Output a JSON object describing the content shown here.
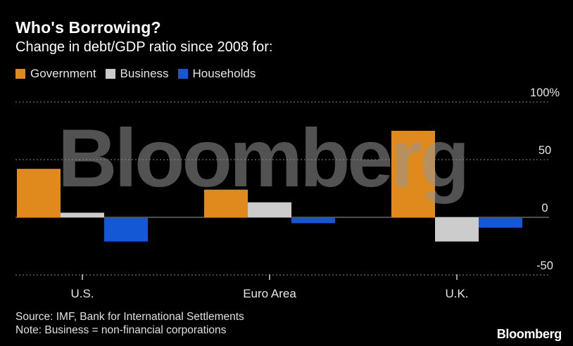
{
  "title": "Who's Borrowing?",
  "subtitle": "Change in debt/GDP ratio since 2008 for:",
  "legend": [
    {
      "label": "Government",
      "color": "#e08a1e"
    },
    {
      "label": "Business",
      "color": "#cccccc"
    },
    {
      "label": "Households",
      "color": "#1458d6"
    }
  ],
  "footer": {
    "source": "Source: IMF, Bank for International Settlements",
    "note": "Note: Business = non-financial corporations"
  },
  "logo": "Bloomberg",
  "watermark": "Bloomberg",
  "chart_data": {
    "type": "bar",
    "categories": [
      "U.S.",
      "Euro Area",
      "U.K."
    ],
    "series": [
      {
        "name": "Government",
        "color": "#e08a1e",
        "values": [
          42,
          24,
          75
        ]
      },
      {
        "name": "Business",
        "color": "#cccccc",
        "values": [
          4,
          13,
          -21
        ]
      },
      {
        "name": "Households",
        "color": "#1458d6",
        "values": [
          -21,
          -5,
          -9
        ]
      }
    ],
    "ylim": [
      -50,
      100
    ],
    "yticks": [
      100,
      50,
      0,
      -50
    ],
    "ytick_labels": [
      "100%",
      "50",
      "0",
      "-50"
    ],
    "grid": true,
    "legend_position": "top-left"
  }
}
